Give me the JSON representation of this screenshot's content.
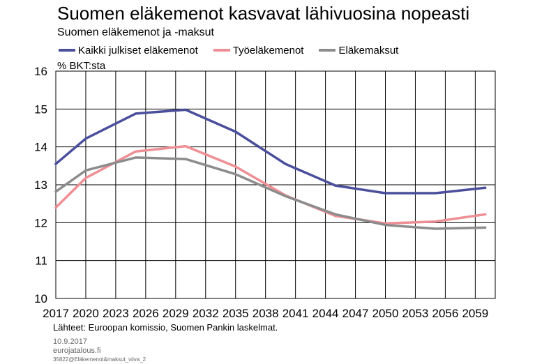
{
  "chart_data": {
    "type": "line",
    "title": "Suomen eläkemenot kasvavat lähivuosina nopeasti",
    "subtitle": "Suomen eläkemenot ja -maksut",
    "ylabel": "% BKT:sta",
    "ylim": [
      10,
      16
    ],
    "yticks": [
      10,
      11,
      12,
      13,
      14,
      15,
      16
    ],
    "xlim": [
      2017,
      2061
    ],
    "xticks": [
      2017,
      2020,
      2023,
      2026,
      2029,
      2032,
      2035,
      2038,
      2041,
      2044,
      2047,
      2050,
      2053,
      2056,
      2059
    ],
    "grid": true,
    "legend": "top",
    "series": [
      {
        "name": "Kaikki julkiset eläkemenot",
        "color": "#4a4f9c",
        "x": [
          2017,
          2020,
          2025,
          2030,
          2035,
          2040,
          2045,
          2050,
          2055,
          2060
        ],
        "y": [
          13.55,
          14.22,
          14.88,
          14.98,
          14.4,
          13.55,
          12.98,
          12.78,
          12.78,
          12.92
        ]
      },
      {
        "name": "Työeläkemenot",
        "color": "#ee8f95",
        "x": [
          2017,
          2020,
          2025,
          2030,
          2035,
          2040,
          2045,
          2050,
          2055,
          2060
        ],
        "y": [
          12.4,
          13.18,
          13.88,
          14.02,
          13.48,
          12.72,
          12.18,
          11.98,
          12.03,
          12.22
        ]
      },
      {
        "name": "Eläkemaksut",
        "color": "#8c8c8c",
        "x": [
          2017,
          2020,
          2025,
          2030,
          2035,
          2040,
          2045,
          2050,
          2055,
          2060
        ],
        "y": [
          12.82,
          13.38,
          13.72,
          13.68,
          13.28,
          12.7,
          12.22,
          11.94,
          11.84,
          11.87
        ]
      }
    ]
  },
  "source": "Lähteet: Euroopan komissio, Suomen Pankin laskelmat.",
  "footer": {
    "date": "10.9.2017",
    "site": "eurojatalous.fi",
    "code": "35822@Eläkemenot&maksut_viiva_2"
  }
}
